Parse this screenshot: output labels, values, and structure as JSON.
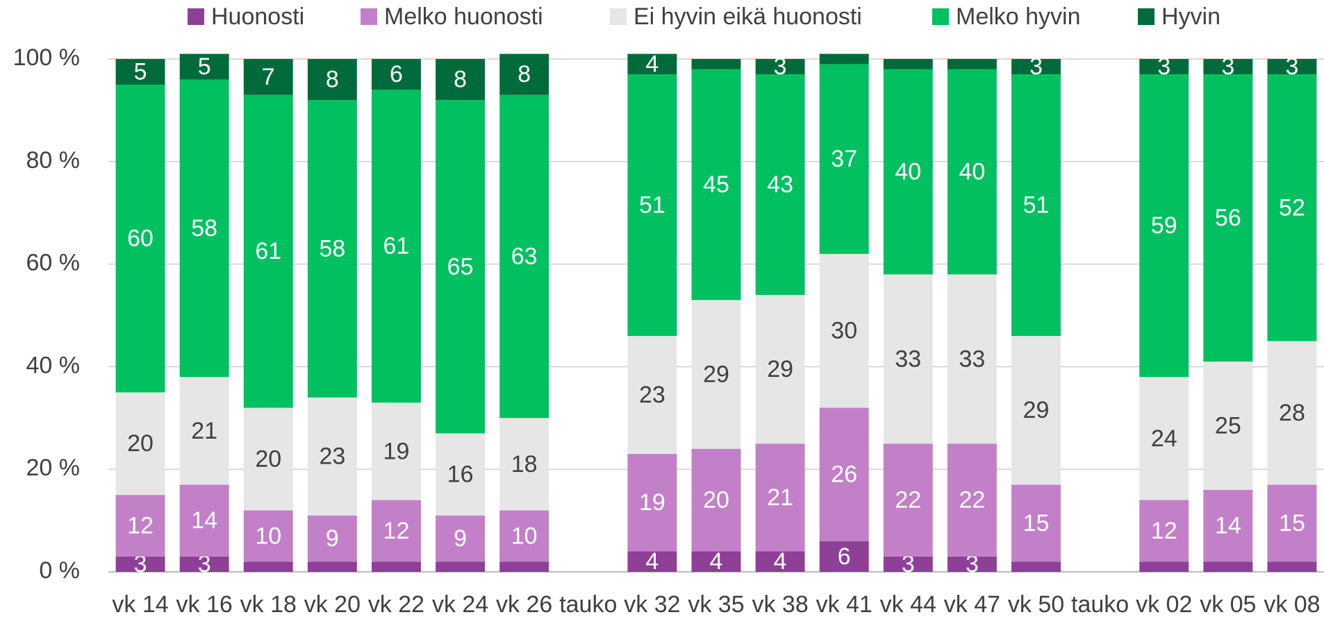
{
  "chart_data": {
    "type": "stacked_bar",
    "categories": [
      "vk 14",
      "vk 16",
      "vk 18",
      "vk 20",
      "vk 22",
      "vk 24",
      "vk 26",
      "tauko",
      "vk 32",
      "vk 35",
      "vk 38",
      "vk 41",
      "vk 44",
      "vk 47",
      "vk 50",
      "tauko",
      "vk 02",
      "vk 05",
      "vk 08"
    ],
    "series": [
      {
        "name": "Huonosti",
        "color": "#8e3f96",
        "values": [
          3,
          3,
          2,
          2,
          2,
          2,
          2,
          null,
          4,
          4,
          4,
          6,
          3,
          3,
          2,
          null,
          2,
          2,
          2
        ]
      },
      {
        "name": "Melko huonosti",
        "color": "#c280c8",
        "values": [
          12,
          14,
          10,
          9,
          12,
          9,
          10,
          null,
          19,
          20,
          21,
          26,
          22,
          22,
          15,
          null,
          12,
          14,
          15
        ]
      },
      {
        "name": "Ei hyvin eikä huonosti",
        "color": "#e6e6e6",
        "values": [
          20,
          21,
          20,
          23,
          19,
          16,
          18,
          null,
          23,
          29,
          29,
          30,
          33,
          33,
          29,
          null,
          24,
          25,
          28
        ]
      },
      {
        "name": "Melko hyvin",
        "color": "#00c060",
        "values": [
          60,
          58,
          61,
          58,
          61,
          65,
          63,
          null,
          51,
          45,
          43,
          37,
          40,
          40,
          51,
          null,
          59,
          56,
          52
        ]
      },
      {
        "name": "Hyvin",
        "color": "#006b3a",
        "values": [
          5,
          5,
          7,
          8,
          6,
          8,
          8,
          null,
          4,
          2,
          3,
          2,
          2,
          2,
          3,
          null,
          3,
          3,
          3
        ]
      }
    ],
    "ylim": [
      0,
      100
    ],
    "yticks": [
      {
        "value": 0,
        "label": "0 %"
      },
      {
        "value": 20,
        "label": "20 %"
      },
      {
        "value": 40,
        "label": "40 %"
      },
      {
        "value": 60,
        "label": "60 %"
      },
      {
        "value": 80,
        "label": "80 %"
      },
      {
        "value": 100,
        "label": "100 %"
      }
    ],
    "grid": true,
    "legend": "top"
  }
}
